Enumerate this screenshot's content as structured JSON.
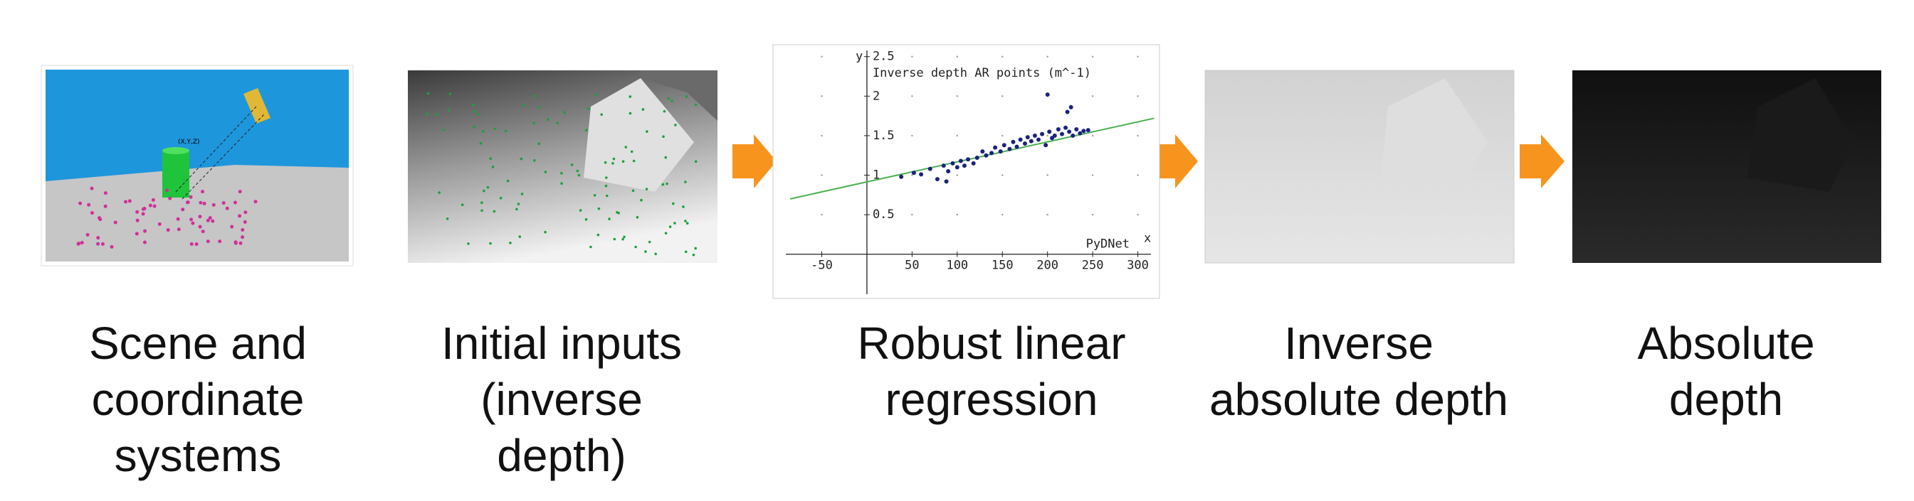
{
  "panels": [
    {
      "caption": [
        "Scene and",
        "coordinate",
        "systems"
      ]
    },
    {
      "caption": [
        "Initial inputs",
        "(inverse",
        "depth)"
      ]
    },
    {
      "caption": [
        "Robust linear",
        "regression"
      ]
    },
    {
      "caption": [
        "Inverse",
        "absolute depth"
      ]
    },
    {
      "caption": [
        "Absolute",
        "depth"
      ]
    }
  ],
  "scene_label": "(X,Y,Z)",
  "regression": {
    "type": "scatter",
    "title": "Inverse depth AR points (m^-1)",
    "x_label": "PyDNet",
    "x_axis_name": "x",
    "y_axis_name": "y",
    "xlim": [
      -104,
      324
    ],
    "ylim": [
      -0.56,
      2.65
    ],
    "xticks": [
      -50,
      50,
      100,
      150,
      200,
      250,
      300
    ],
    "yticks": [
      0.5,
      1,
      1.5,
      2,
      2.5
    ],
    "fit_line": {
      "x": [
        -85,
        318
      ],
      "y": [
        0.7,
        1.72
      ]
    },
    "points": {
      "x": [
        38,
        52,
        60,
        70,
        78,
        85,
        90,
        95,
        100,
        104,
        108,
        112,
        118,
        122,
        128,
        132,
        138,
        142,
        148,
        152,
        158,
        162,
        166,
        170,
        175,
        178,
        182,
        186,
        190,
        194,
        198,
        202,
        205,
        208,
        212,
        216,
        220,
        224,
        228,
        232,
        236,
        240,
        245,
        88,
        200,
        222,
        226
      ],
      "y": [
        0.98,
        1.03,
        1.01,
        1.08,
        0.95,
        1.12,
        1.05,
        1.15,
        1.1,
        1.18,
        1.12,
        1.2,
        1.15,
        1.22,
        1.3,
        1.25,
        1.28,
        1.35,
        1.3,
        1.38,
        1.33,
        1.42,
        1.36,
        1.45,
        1.4,
        1.48,
        1.43,
        1.5,
        1.45,
        1.52,
        1.38,
        1.55,
        1.47,
        1.5,
        1.58,
        1.52,
        1.6,
        1.55,
        1.5,
        1.58,
        1.53,
        1.56,
        1.57,
        0.92,
        2.02,
        1.8,
        1.86
      ]
    }
  }
}
